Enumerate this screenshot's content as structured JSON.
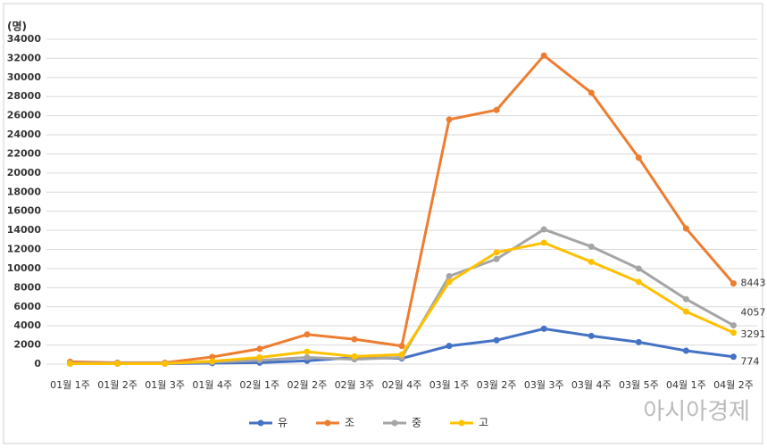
{
  "chart_data": {
    "type": "line",
    "y_label": "(명)",
    "categories": [
      "01월 1주",
      "01월 2주",
      "01월 3주",
      "01월 4주",
      "02월 1주",
      "02월 2주",
      "02월 3주",
      "02월 4주",
      "03월 1주",
      "03월 2주",
      "03월 3주",
      "03월 4주",
      "03월 5주",
      "04월 1주",
      "04월 2주"
    ],
    "series": [
      {
        "name": "유",
        "color": "#4472c4",
        "values": [
          50,
          50,
          50,
          100,
          150,
          350,
          700,
          600,
          1900,
          2500,
          3700,
          2950,
          2300,
          1400,
          774
        ]
      },
      {
        "name": "조",
        "color": "#ed7d31",
        "values": [
          250,
          150,
          150,
          750,
          1600,
          3100,
          2600,
          1900,
          25600,
          26600,
          32300,
          28400,
          21600,
          14200,
          8443
        ]
      },
      {
        "name": "중",
        "color": "#a5a5a5",
        "values": [
          100,
          100,
          100,
          200,
          400,
          700,
          500,
          700,
          9200,
          11000,
          14100,
          12300,
          10000,
          6800,
          4057
        ]
      },
      {
        "name": "고",
        "color": "#ffc000",
        "values": [
          50,
          50,
          50,
          300,
          700,
          1300,
          800,
          1000,
          8600,
          11700,
          12700,
          10700,
          8600,
          5500,
          3291
        ]
      }
    ],
    "ylim": [
      0,
      34000
    ],
    "yticks": [
      0,
      2000,
      4000,
      6000,
      8000,
      10000,
      12000,
      14000,
      16000,
      18000,
      20000,
      22000,
      24000,
      26000,
      28000,
      30000,
      32000,
      34000
    ],
    "grid": true,
    "legend": "bottom",
    "watermark": "아시아경제"
  }
}
